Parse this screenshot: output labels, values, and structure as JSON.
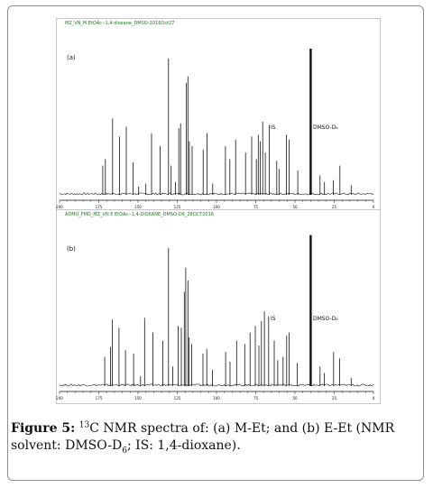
{
  "figure": {
    "caption": {
      "label": "Figure 5:",
      "isotope_mass": "13",
      "pre_sub": "C NMR spectra of: (a) M-Et; and (b) E-Et (NMR solvent: DMSO-D",
      "sub": "6",
      "post_sub": "; IS: 1,4-dioxane)."
    },
    "panels": [
      {
        "id": "a",
        "header_text": "MZ_VN_M EtOAc--1,4-dioxane_DMSO-2016Oct27",
        "panel_label": "(a)",
        "is_label": "IS",
        "solvent_label": "DMSO-D₆"
      },
      {
        "id": "b",
        "header_text": "ADMU_FMD_MZ_VN E EtOAc--1,4-DIOXANE_DMSO-D6_28OCT2016",
        "panel_label": "(b)",
        "is_label": "IS",
        "solvent_label": "DMSO-D₆"
      }
    ]
  },
  "chart_data": [
    {
      "type": "line",
      "xlabel": "",
      "ylabel": "",
      "xlim": [
        200,
        0
      ],
      "x_ticks": [
        "200",
        "175",
        "150",
        "125",
        "100",
        "75",
        "50",
        "25",
        "0"
      ],
      "grid": false,
      "annotations": [
        "IS",
        "DMSO-D₆"
      ],
      "peaks": [
        {
          "ppm": 172.5,
          "height": 0.18
        },
        {
          "ppm": 170.8,
          "height": 0.22
        },
        {
          "ppm": 166.2,
          "height": 0.47
        },
        {
          "ppm": 161.8,
          "height": 0.36
        },
        {
          "ppm": 157.5,
          "height": 0.42
        },
        {
          "ppm": 153.1,
          "height": 0.2
        },
        {
          "ppm": 149.6,
          "height": 0.05
        },
        {
          "ppm": 145.0,
          "height": 0.07
        },
        {
          "ppm": 141.4,
          "height": 0.38
        },
        {
          "ppm": 136.0,
          "height": 0.3
        },
        {
          "ppm": 130.6,
          "height": 0.84
        },
        {
          "ppm": 128.9,
          "height": 0.18
        },
        {
          "ppm": 126.2,
          "height": 0.08
        },
        {
          "ppm": 124.0,
          "height": 0.41
        },
        {
          "ppm": 122.9,
          "height": 0.44
        },
        {
          "ppm": 119.3,
          "height": 0.69
        },
        {
          "ppm": 118.2,
          "height": 0.73
        },
        {
          "ppm": 117.3,
          "height": 0.33
        },
        {
          "ppm": 115.5,
          "height": 0.3
        },
        {
          "ppm": 108.5,
          "height": 0.28
        },
        {
          "ppm": 106.0,
          "height": 0.38
        },
        {
          "ppm": 102.4,
          "height": 0.07
        },
        {
          "ppm": 94.3,
          "height": 0.3
        },
        {
          "ppm": 91.5,
          "height": 0.22
        },
        {
          "ppm": 87.8,
          "height": 0.34
        },
        {
          "ppm": 81.5,
          "height": 0.26
        },
        {
          "ppm": 77.6,
          "height": 0.36
        },
        {
          "ppm": 74.6,
          "height": 0.22
        },
        {
          "ppm": 73.4,
          "height": 0.37
        },
        {
          "ppm": 72.2,
          "height": 0.33
        },
        {
          "ppm": 70.6,
          "height": 0.45
        },
        {
          "ppm": 68.9,
          "height": 0.26
        },
        {
          "ppm": 66.4,
          "height": 0.43
        },
        {
          "ppm": 61.6,
          "height": 0.21
        },
        {
          "ppm": 60.2,
          "height": 0.16
        },
        {
          "ppm": 55.4,
          "height": 0.37
        },
        {
          "ppm": 53.8,
          "height": 0.34
        },
        {
          "ppm": 48.2,
          "height": 0.15
        },
        {
          "ppm": 40.0,
          "height": 0.9
        },
        {
          "ppm": 34.0,
          "height": 0.12
        },
        {
          "ppm": 31.2,
          "height": 0.08
        },
        {
          "ppm": 25.6,
          "height": 0.09
        },
        {
          "ppm": 21.4,
          "height": 0.18
        },
        {
          "ppm": 14.2,
          "height": 0.06
        }
      ]
    },
    {
      "type": "line",
      "xlabel": "",
      "ylabel": "",
      "xlim": [
        200,
        0
      ],
      "x_ticks": [
        "200",
        "175",
        "150",
        "125",
        "100",
        "75",
        "50",
        "25",
        "0"
      ],
      "grid": false,
      "annotations": [
        "IS",
        "DMSO-D₆"
      ],
      "peaks": [
        {
          "ppm": 171.2,
          "height": 0.18
        },
        {
          "ppm": 167.5,
          "height": 0.24
        },
        {
          "ppm": 166.3,
          "height": 0.41
        },
        {
          "ppm": 162.1,
          "height": 0.36
        },
        {
          "ppm": 158.0,
          "height": 0.22
        },
        {
          "ppm": 152.8,
          "height": 0.2
        },
        {
          "ppm": 148.4,
          "height": 0.06
        },
        {
          "ppm": 145.8,
          "height": 0.42
        },
        {
          "ppm": 140.5,
          "height": 0.33
        },
        {
          "ppm": 134.2,
          "height": 0.28
        },
        {
          "ppm": 130.6,
          "height": 0.85
        },
        {
          "ppm": 127.8,
          "height": 0.12
        },
        {
          "ppm": 124.5,
          "height": 0.37
        },
        {
          "ppm": 122.4,
          "height": 0.36
        },
        {
          "ppm": 120.5,
          "height": 0.58
        },
        {
          "ppm": 119.6,
          "height": 0.73
        },
        {
          "ppm": 118.2,
          "height": 0.65
        },
        {
          "ppm": 117.4,
          "height": 0.3
        },
        {
          "ppm": 115.8,
          "height": 0.26
        },
        {
          "ppm": 108.6,
          "height": 0.2
        },
        {
          "ppm": 106.2,
          "height": 0.23
        },
        {
          "ppm": 102.6,
          "height": 0.1
        },
        {
          "ppm": 94.2,
          "height": 0.21
        },
        {
          "ppm": 91.4,
          "height": 0.15
        },
        {
          "ppm": 87.2,
          "height": 0.28
        },
        {
          "ppm": 82.0,
          "height": 0.26
        },
        {
          "ppm": 78.6,
          "height": 0.33
        },
        {
          "ppm": 75.3,
          "height": 0.37
        },
        {
          "ppm": 73.0,
          "height": 0.25
        },
        {
          "ppm": 71.4,
          "height": 0.4
        },
        {
          "ppm": 69.5,
          "height": 0.46
        },
        {
          "ppm": 66.8,
          "height": 0.43
        },
        {
          "ppm": 63.2,
          "height": 0.28
        },
        {
          "ppm": 61.0,
          "height": 0.16
        },
        {
          "ppm": 57.6,
          "height": 0.18
        },
        {
          "ppm": 55.3,
          "height": 0.31
        },
        {
          "ppm": 53.8,
          "height": 0.33
        },
        {
          "ppm": 48.5,
          "height": 0.14
        },
        {
          "ppm": 40.0,
          "height": 0.93
        },
        {
          "ppm": 34.0,
          "height": 0.12
        },
        {
          "ppm": 31.4,
          "height": 0.08
        },
        {
          "ppm": 25.4,
          "height": 0.21
        },
        {
          "ppm": 21.6,
          "height": 0.17
        },
        {
          "ppm": 14.2,
          "height": 0.05
        }
      ]
    }
  ]
}
